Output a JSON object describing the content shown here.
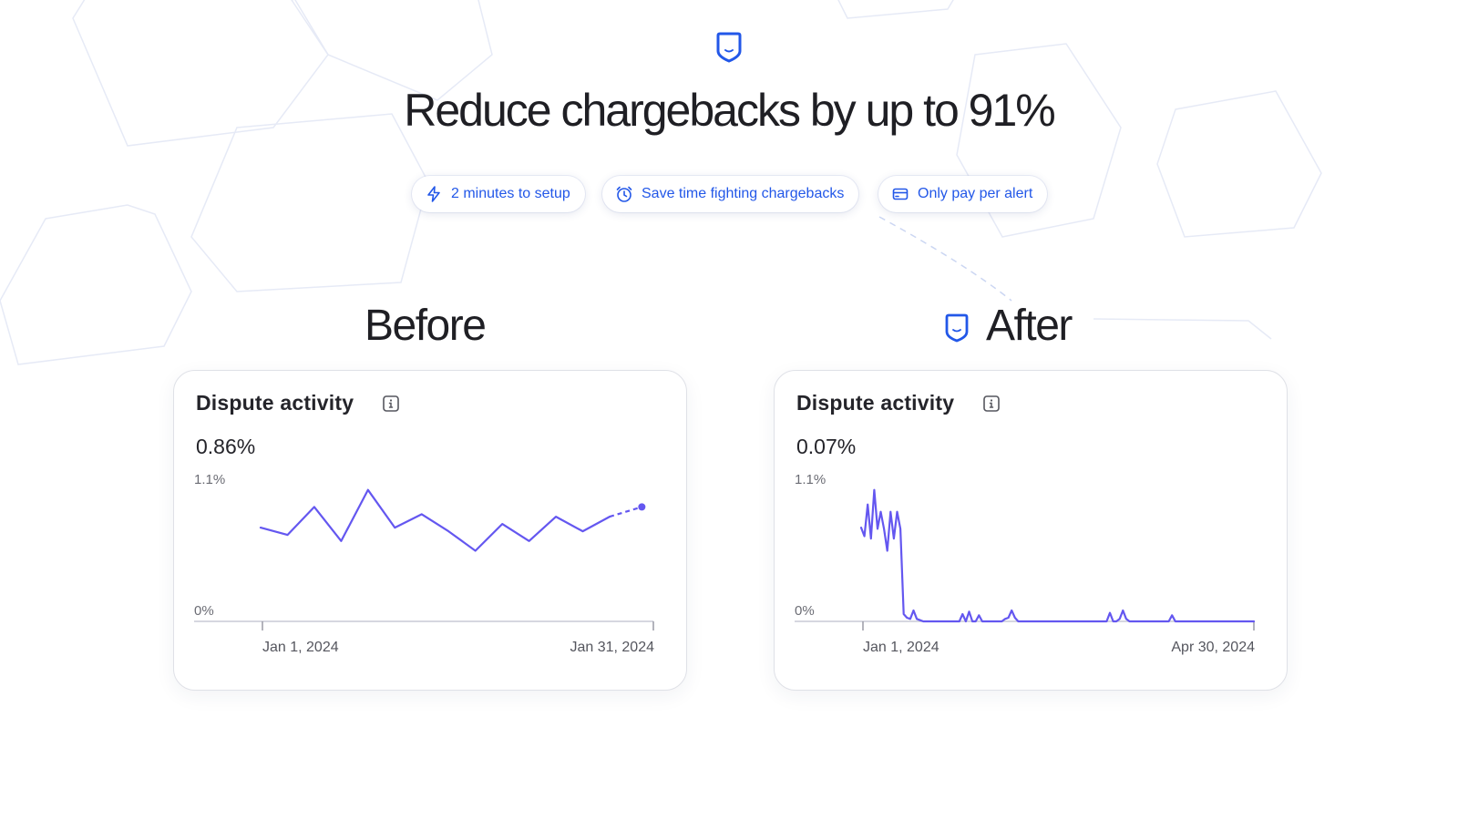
{
  "headline": "Reduce chargebacks by up to 91%",
  "pills": [
    {
      "icon": "lightning-icon",
      "label": "2 minutes to setup"
    },
    {
      "icon": "alarm-clock-icon",
      "label": "Save time fighting chargebacks"
    },
    {
      "icon": "credit-card-icon",
      "label": "Only pay per alert"
    }
  ],
  "before": {
    "title": "Before",
    "card": {
      "title": "Dispute activity",
      "value": "0.86%"
    }
  },
  "after": {
    "title": "After",
    "card": {
      "title": "Dispute activity",
      "value": "0.07%"
    }
  },
  "colors": {
    "accent": "#2257e8",
    "line": "#6457f0",
    "text": "#1f1f24"
  },
  "chart_data": [
    {
      "type": "line",
      "title": "Dispute activity",
      "ytick_labels": [
        "1.1%",
        "0%"
      ],
      "ylim": [
        0,
        1.1
      ],
      "xtick_labels": [
        "Jan 1, 2024",
        "Jan 31, 2024"
      ],
      "x_start": "2024-01-01",
      "x_end": "2024-01-31",
      "series": [
        {
          "values": [
            0.77,
            0.71,
            0.94,
            0.66,
            1.08,
            0.77,
            0.88,
            0.74,
            0.58,
            0.8,
            0.66,
            0.86,
            0.74,
            0.86
          ]
        }
      ],
      "projected_tail": true,
      "grid": false
    },
    {
      "type": "line",
      "title": "Dispute activity",
      "ytick_labels": [
        "1.1%",
        "0%"
      ],
      "ylim": [
        0,
        1.1
      ],
      "xtick_labels": [
        "Jan 1, 2024",
        "Apr 30, 2024"
      ],
      "x_start": "2024-01-01",
      "x_end": "2024-04-30",
      "series": [
        {
          "values": [
            0.77,
            0.7,
            0.96,
            0.68,
            1.08,
            0.76,
            0.9,
            0.76,
            0.58,
            0.9,
            0.68,
            0.9,
            0.76,
            0.06,
            0.03,
            0.02,
            0.09,
            0.02,
            0.01,
            0.0,
            0.0,
            0.0,
            0.0,
            0.0,
            0.0,
            0.0,
            0.0,
            0.0,
            0.0,
            0.0,
            0.0,
            0.06,
            0.0,
            0.08,
            0.0,
            0.0,
            0.05,
            0.0,
            0.0,
            0.0,
            0.0,
            0.0,
            0.0,
            0.0,
            0.02,
            0.03,
            0.09,
            0.03,
            0.0,
            0.0,
            0.0,
            0.0,
            0.0,
            0.0,
            0.0,
            0.0,
            0.0,
            0.0,
            0.0,
            0.0,
            0.0,
            0.0,
            0.0,
            0.0,
            0.0,
            0.0,
            0.0,
            0.0,
            0.0,
            0.0,
            0.0,
            0.0,
            0.0,
            0.0,
            0.0,
            0.0,
            0.07,
            0.0,
            0.0,
            0.02,
            0.09,
            0.02,
            0.0,
            0.0,
            0.0,
            0.0,
            0.0,
            0.0,
            0.0,
            0.0,
            0.0,
            0.0,
            0.0,
            0.0,
            0.0,
            0.05,
            0.0,
            0.0,
            0.0,
            0.0,
            0.0,
            0.0,
            0.0,
            0.0,
            0.0,
            0.0,
            0.0,
            0.0,
            0.0,
            0.0,
            0.0,
            0.0,
            0.0,
            0.0,
            0.0,
            0.0,
            0.0,
            0.0,
            0.0,
            0.0,
            0.0
          ]
        }
      ],
      "projected_tail": false,
      "grid": false
    }
  ]
}
